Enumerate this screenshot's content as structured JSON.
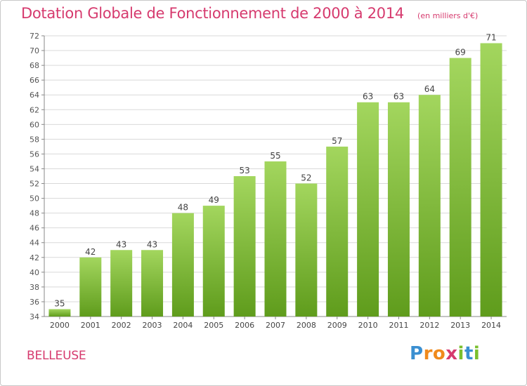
{
  "chart_data": {
    "type": "bar",
    "title": "Dotation Globale de Fonctionnement de 2000 à 2014",
    "subtitle": "(en milliers d'€)",
    "categories": [
      "2000",
      "2001",
      "2002",
      "2003",
      "2004",
      "2005",
      "2006",
      "2007",
      "2008",
      "2009",
      "2010",
      "2011",
      "2012",
      "2013",
      "2014"
    ],
    "values": [
      35,
      42,
      43,
      43,
      48,
      49,
      53,
      55,
      52,
      57,
      63,
      63,
      64,
      69,
      71
    ],
    "ylim": [
      34,
      72
    ],
    "yticks": [
      34,
      36,
      38,
      40,
      42,
      44,
      46,
      48,
      50,
      52,
      54,
      56,
      58,
      60,
      62,
      64,
      66,
      68,
      70,
      72
    ],
    "xlabel": "",
    "ylabel": "",
    "grid": true,
    "colors": {
      "bar_light": "#9fd45a",
      "bar_dark": "#5f9c1c",
      "title": "#d63a6e",
      "grid": "#d9d9d9"
    }
  },
  "commune": "BELLEUSE",
  "logo": {
    "letters": [
      "P",
      "r",
      "o",
      "x",
      "i",
      "t",
      "i"
    ],
    "colors": [
      "#3a8fd1",
      "#f08a1c",
      "#f08a1c",
      "#d63a6e",
      "#7bbf2e",
      "#3a8fd1",
      "#7bbf2e"
    ]
  }
}
